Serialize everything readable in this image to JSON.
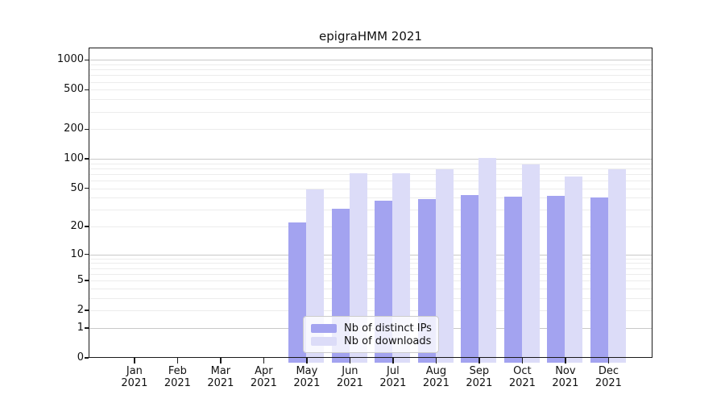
{
  "chart_data": {
    "type": "bar",
    "title": "epigraHMM 2021",
    "categories": [
      "Jan 2021",
      "Feb 2021",
      "Mar 2021",
      "Apr 2021",
      "May 2021",
      "Jun 2021",
      "Jul 2021",
      "Aug 2021",
      "Sep 2021",
      "Oct 2021",
      "Nov 2021",
      "Dec 2021"
    ],
    "series": [
      {
        "name": "Nb of distinct IPs",
        "color": "#a3a3f0",
        "values": [
          0,
          0,
          0,
          0,
          22,
          31,
          37,
          39,
          43,
          41,
          42,
          40
        ]
      },
      {
        "name": "Nb of downloads",
        "color": "#dcdcf8",
        "values": [
          0,
          0,
          0,
          0,
          49,
          71,
          71,
          78,
          102,
          87,
          66,
          78
        ]
      }
    ],
    "xlabel": "",
    "ylabel": "",
    "yscale": "log1p",
    "yticks": [
      0,
      1,
      2,
      5,
      10,
      20,
      50,
      100,
      200,
      500,
      1000
    ],
    "ylim": [
      0,
      1400
    ],
    "grid": "major_and_minor_horizontal",
    "legend_position": "inside-bottom-center",
    "colors": {
      "major_gridline": "#c9c9c9",
      "minor_gridline": "#ececec",
      "spine": "#1a1a1a",
      "legend_border": "#cccccc"
    }
  }
}
